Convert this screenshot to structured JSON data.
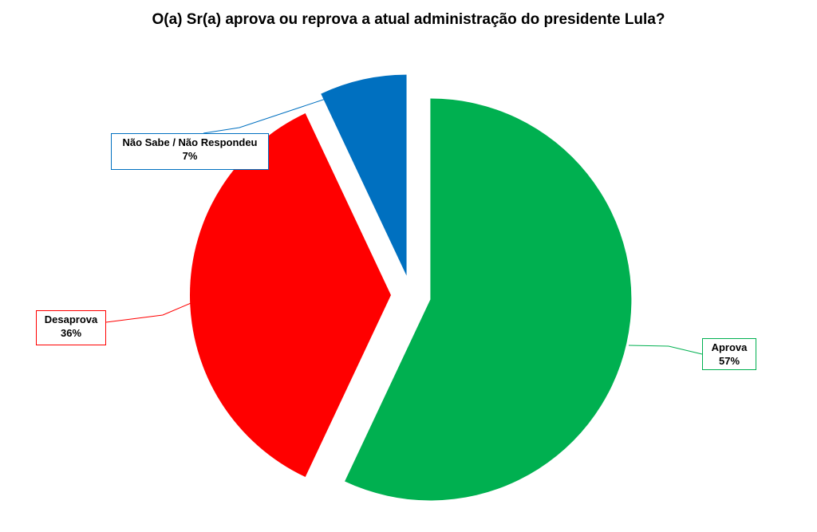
{
  "chart_data": {
    "type": "pie",
    "title": "O(a) Sr(a) aprova ou reprova a atual administração do presidente Lula?",
    "exploded": true,
    "slices": [
      {
        "name": "Aprova",
        "value": 57,
        "label": "57%",
        "color": "#00B050"
      },
      {
        "name": "Desaprova",
        "value": 36,
        "label": "36%",
        "color": "#FF0000"
      },
      {
        "name": "Não Sabe / Não Respondeu",
        "value": 7,
        "label": "7%",
        "color": "#0070C0"
      }
    ]
  }
}
